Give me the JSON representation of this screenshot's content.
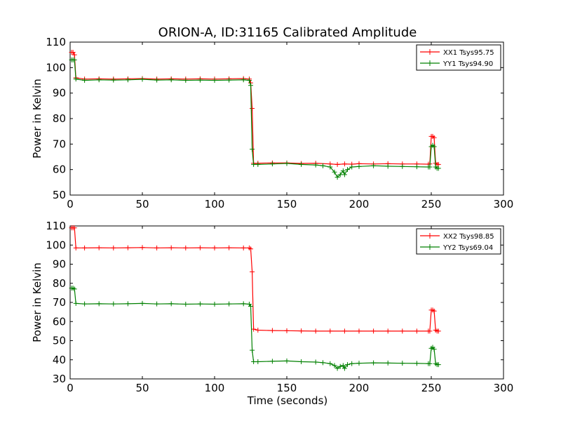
{
  "figure": {
    "title": "ORION-A, ID:31165 Calibrated Amplitude",
    "xlabel": "Time (seconds)"
  },
  "chart_data": [
    {
      "type": "line",
      "title": "ORION-A, ID:31165 Calibrated Amplitude",
      "xlabel": "",
      "ylabel": "Power in Kelvin",
      "xlim": [
        0,
        300
      ],
      "ylim": [
        50,
        110
      ],
      "xticks": [
        0,
        50,
        100,
        150,
        200,
        250,
        300
      ],
      "yticks": [
        50,
        60,
        70,
        80,
        90,
        100,
        110
      ],
      "grid": false,
      "legend_position": "top-right",
      "series": [
        {
          "name": "XX1 Tsys95.75",
          "color": "#ff0000",
          "marker": "plus",
          "x": [
            1,
            2,
            3,
            4,
            10,
            20,
            30,
            40,
            50,
            60,
            70,
            80,
            90,
            100,
            110,
            120,
            124,
            125,
            126,
            127,
            130,
            140,
            150,
            160,
            170,
            180,
            185,
            190,
            195,
            200,
            210,
            220,
            230,
            240,
            248,
            249,
            250,
            251,
            252,
            253,
            254,
            255
          ],
          "y": [
            106,
            106,
            105,
            96,
            95.5,
            95.6,
            95.5,
            95.6,
            95.7,
            95.5,
            95.6,
            95.5,
            95.6,
            95.5,
            95.6,
            95.7,
            95.5,
            94,
            84,
            62.5,
            62.5,
            62.6,
            62.6,
            62.4,
            62.5,
            62.2,
            62.0,
            62.2,
            62.1,
            62.3,
            62.2,
            62.3,
            62.2,
            62.2,
            62.1,
            62.2,
            73,
            73,
            72.5,
            62.5,
            62,
            62
          ]
        },
        {
          "name": "YY1 Tsys94.90",
          "color": "#008000",
          "marker": "plus",
          "x": [
            1,
            2,
            3,
            4,
            10,
            20,
            30,
            40,
            50,
            60,
            70,
            80,
            90,
            100,
            110,
            120,
            124,
            125,
            126,
            127,
            130,
            140,
            150,
            160,
            170,
            175,
            180,
            183,
            185,
            187,
            189,
            190,
            192,
            195,
            200,
            210,
            220,
            230,
            240,
            248,
            249,
            250,
            251,
            252,
            253,
            254,
            255
          ],
          "y": [
            103,
            103,
            103,
            95.5,
            95,
            95.2,
            95.1,
            95.2,
            95.4,
            95.1,
            95.2,
            95,
            95.1,
            95,
            95.1,
            95.2,
            95,
            93,
            68,
            62,
            62,
            62.2,
            62.4,
            62,
            61.8,
            61.5,
            61,
            59,
            57,
            58,
            59.5,
            58,
            60,
            61,
            61.2,
            61.5,
            61.3,
            61.2,
            61.1,
            61,
            61,
            69,
            69.5,
            69,
            61,
            60.5,
            60.5
          ]
        }
      ]
    },
    {
      "type": "line",
      "title": "",
      "xlabel": "Time (seconds)",
      "ylabel": "Power in Kelvin",
      "xlim": [
        0,
        300
      ],
      "ylim": [
        30,
        110
      ],
      "xticks": [
        0,
        50,
        100,
        150,
        200,
        250,
        300
      ],
      "yticks": [
        30,
        40,
        50,
        60,
        70,
        80,
        90,
        100,
        110
      ],
      "grid": false,
      "legend_position": "top-right",
      "series": [
        {
          "name": "XX2 Tsys98.85",
          "color": "#ff0000",
          "marker": "plus",
          "x": [
            1,
            2,
            3,
            4,
            10,
            20,
            30,
            40,
            50,
            60,
            70,
            80,
            90,
            100,
            110,
            120,
            124,
            125,
            126,
            127,
            130,
            140,
            150,
            160,
            170,
            180,
            190,
            200,
            210,
            220,
            230,
            240,
            248,
            249,
            250,
            251,
            252,
            253,
            254,
            255
          ],
          "y": [
            109,
            109,
            109,
            98.5,
            98.5,
            98.6,
            98.5,
            98.6,
            98.7,
            98.5,
            98.6,
            98.5,
            98.6,
            98.5,
            98.6,
            98.5,
            98.5,
            98,
            86,
            56,
            55.5,
            55.3,
            55.2,
            55.1,
            55.0,
            55.0,
            55.0,
            55.0,
            55.0,
            55.0,
            55.0,
            55.0,
            55.0,
            55.0,
            66,
            66,
            65.5,
            55.5,
            55,
            55
          ]
        },
        {
          "name": "YY2 Tsys69.04",
          "color": "#008000",
          "marker": "plus",
          "x": [
            1,
            2,
            3,
            4,
            10,
            20,
            30,
            40,
            50,
            60,
            70,
            80,
            90,
            100,
            110,
            120,
            124,
            125,
            126,
            127,
            130,
            140,
            150,
            160,
            170,
            175,
            180,
            183,
            185,
            187,
            189,
            190,
            192,
            195,
            200,
            210,
            220,
            230,
            240,
            248,
            249,
            250,
            251,
            252,
            253,
            254,
            255
          ],
          "y": [
            77.5,
            77.5,
            77,
            69.5,
            69.2,
            69.3,
            69.2,
            69.3,
            69.5,
            69.2,
            69.3,
            69.1,
            69.2,
            69.1,
            69.2,
            69.3,
            69.1,
            68,
            45,
            39,
            39,
            39.2,
            39.4,
            39,
            38.8,
            38.5,
            38,
            37,
            35.5,
            36.5,
            37,
            35.5,
            37.5,
            38,
            38.2,
            38.4,
            38.3,
            38.2,
            38.1,
            38,
            38,
            46,
            46.5,
            45.5,
            38,
            37.5,
            37.5
          ]
        }
      ]
    }
  ]
}
